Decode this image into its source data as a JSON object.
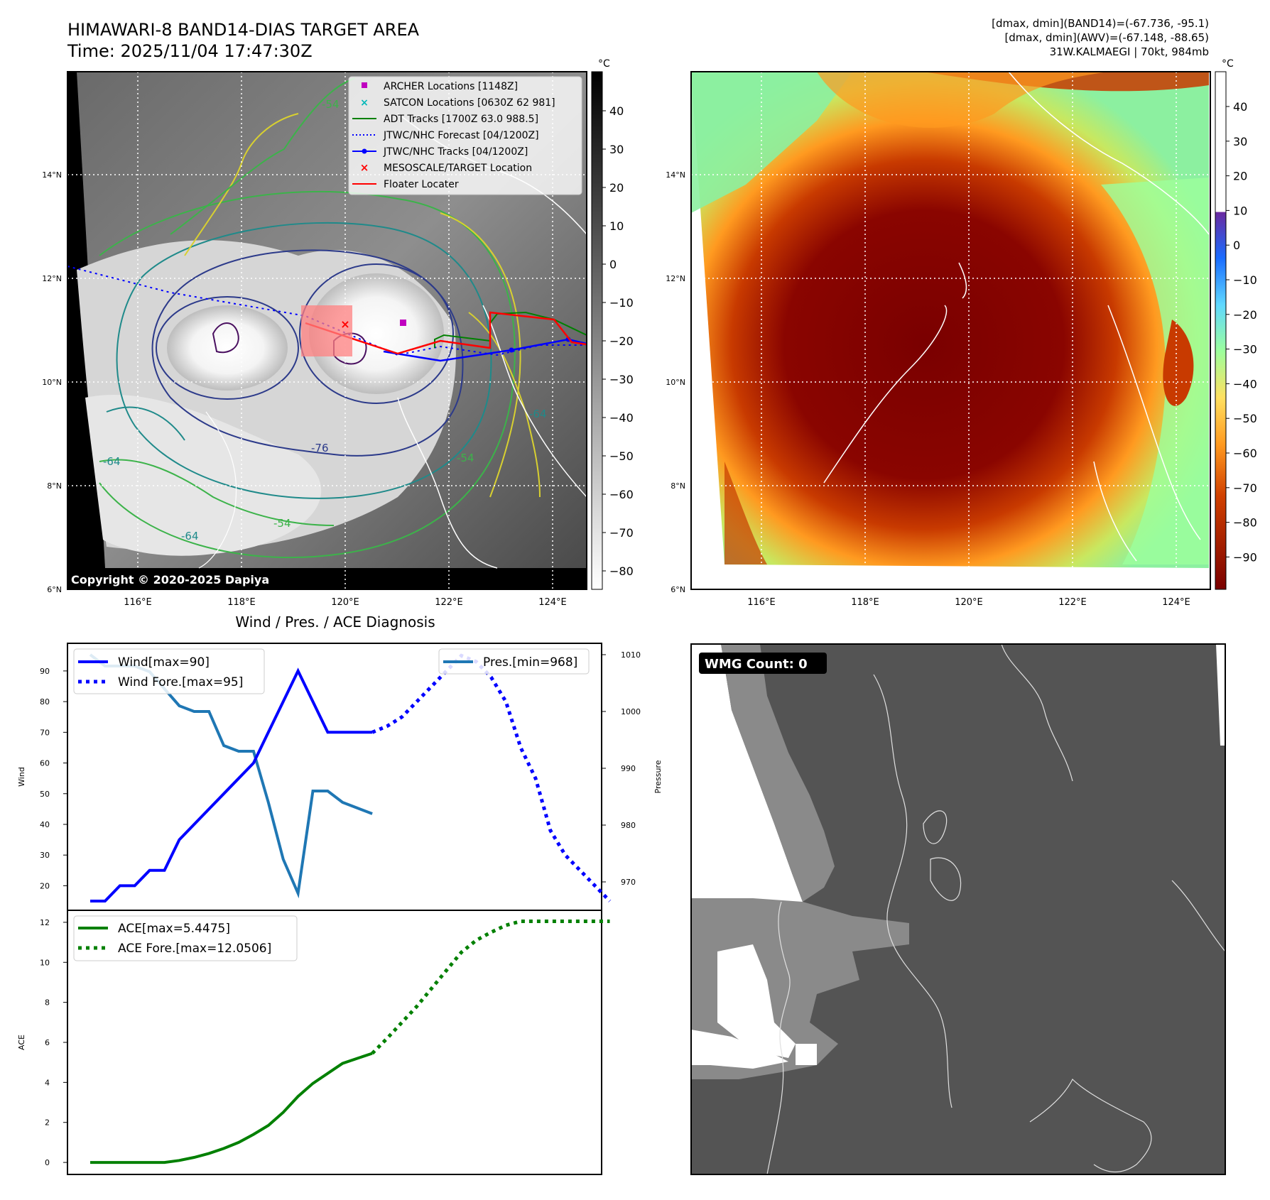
{
  "header": {
    "title_line1": "HIMAWARI-8 BAND14-DIAS TARGET AREA",
    "title_line2": "Time: 2025/11/04 17:47:30Z",
    "stat_line1": "[dmax, dmin](BAND14)=(-67.736, -95.1)",
    "stat_line2": "[dmax, dmin](AWV)=(-67.148, -88.65)",
    "stat_line3": "31W.KALMAEGI | 70kt, 984mb"
  },
  "map_panel_ir": {
    "lat_labels": [
      "14°N",
      "12°N",
      "10°N",
      "8°N",
      "6°N"
    ],
    "lon_labels": [
      "116°E",
      "118°E",
      "120°E",
      "122°E",
      "124°E"
    ],
    "contour_labels": [
      "-54",
      "-64",
      "-76",
      "-64",
      "-54",
      "-64",
      "-54"
    ],
    "legend": [
      {
        "label": "ARCHER Locations [1148Z]",
        "color": "#c000c0",
        "marker": "square"
      },
      {
        "label": "SATCON Locations [0630Z 62 981]",
        "color": "#00b8b8",
        "marker": "x"
      },
      {
        "label": "ADT Tracks [1700Z 63.0 988.5]",
        "color": "#008000",
        "marker": "line"
      },
      {
        "label": "JTWC/NHC Forecast [04/1200Z]",
        "color": "#0000ff",
        "marker": "dotted"
      },
      {
        "label": "JTWC/NHC Tracks [04/1200Z]",
        "color": "#0000ff",
        "marker": "line-dot"
      },
      {
        "label": "MESOSCALE/TARGET Location",
        "color": "#ff0000",
        "marker": "x"
      },
      {
        "label": "Floater Locater",
        "color": "#ff0000",
        "marker": "line"
      }
    ],
    "copyright": "Copyright © 2020-2025 Dapiya",
    "colorbar_unit": "°C",
    "colorbar_ticks": [
      "40",
      "30",
      "20",
      "10",
      "0",
      "−10",
      "−20",
      "−30",
      "−40",
      "−50",
      "−60",
      "−70",
      "−80"
    ]
  },
  "map_panel_awv": {
    "lat_labels": [
      "14°N",
      "12°N",
      "10°N",
      "8°N",
      "6°N"
    ],
    "lon_labels": [
      "116°E",
      "118°E",
      "120°E",
      "122°E",
      "124°E"
    ],
    "colorbar_unit": "°C",
    "colorbar_ticks": [
      "40",
      "30",
      "20",
      "10",
      "0",
      "−10",
      "−20",
      "−30",
      "−40",
      "−50",
      "−60",
      "−70",
      "−80",
      "−90"
    ]
  },
  "wmg_panel": {
    "badge": "WMG Count: 0"
  },
  "chart_data": [
    {
      "type": "line",
      "title": "Wind / Pres. / ACE Diagnosis",
      "ylabel": "Wind",
      "ylim": [
        12,
        99
      ],
      "yticks": [
        20,
        30,
        40,
        50,
        60,
        70,
        80,
        90
      ],
      "series": [
        {
          "name": "Wind[max=90]",
          "color": "#0000ff",
          "style": "solid",
          "x": [
            0,
            1,
            2,
            3,
            4,
            5,
            6,
            7,
            8,
            9,
            10,
            11,
            12,
            13,
            14,
            15,
            16,
            17,
            18,
            19
          ],
          "values": [
            15,
            15,
            20,
            20,
            25,
            25,
            35,
            40,
            45,
            50,
            55,
            60,
            70,
            80,
            90,
            80,
            70,
            70,
            70,
            70
          ]
        },
        {
          "name": "Wind Fore.[max=95]",
          "color": "#0000ff",
          "style": "dotted",
          "x": [
            19,
            20,
            21,
            22,
            23,
            24,
            25,
            26,
            27,
            28,
            29,
            30,
            31,
            32,
            33,
            34,
            35
          ],
          "values": [
            70,
            72,
            75,
            80,
            85,
            90,
            95,
            93,
            88,
            80,
            65,
            55,
            38,
            30,
            25,
            20,
            15
          ]
        }
      ]
    },
    {
      "type": "line",
      "ylabel": "Pressure",
      "ylim": [
        965,
        1012
      ],
      "yticks": [
        970,
        980,
        990,
        1000,
        1010
      ],
      "series": [
        {
          "name": "Pres.[min=968]",
          "color": "#1f77b4",
          "style": "solid",
          "x": [
            0,
            1,
            2,
            3,
            4,
            5,
            6,
            7,
            8,
            9,
            10,
            11,
            12,
            13,
            14,
            15,
            16,
            17,
            18,
            19
          ],
          "values": [
            1010,
            1008,
            1008,
            1008,
            1007,
            1004,
            1001,
            1000,
            1000,
            994,
            993,
            993,
            984,
            974,
            968,
            986,
            986,
            984,
            983,
            982
          ]
        }
      ]
    },
    {
      "type": "line",
      "ylabel": "ACE",
      "ylim": [
        -0.6,
        12.6
      ],
      "yticks": [
        0,
        2,
        4,
        6,
        8,
        10,
        12
      ],
      "series": [
        {
          "name": "ACE[max=5.4475]",
          "color": "#008000",
          "style": "solid",
          "x": [
            0,
            1,
            2,
            3,
            4,
            5,
            6,
            7,
            8,
            9,
            10,
            11,
            12,
            13,
            14,
            15,
            16,
            17,
            18,
            19
          ],
          "values": [
            0,
            0,
            0,
            0,
            0,
            0,
            0.1,
            0.25,
            0.45,
            0.7,
            1.0,
            1.4,
            1.85,
            2.5,
            3.3,
            3.95,
            4.45,
            4.95,
            5.2,
            5.45
          ]
        },
        {
          "name": "ACE Fore.[max=12.0506]",
          "color": "#008000",
          "style": "dotted",
          "x": [
            19,
            20,
            21,
            22,
            23,
            24,
            25,
            26,
            27,
            28,
            29,
            30,
            31,
            32,
            33,
            34,
            35
          ],
          "values": [
            5.45,
            6.2,
            7.0,
            7.8,
            8.7,
            9.6,
            10.5,
            11.1,
            11.5,
            11.85,
            12.05,
            12.05,
            12.05,
            12.05,
            12.05,
            12.05,
            12.05
          ]
        }
      ]
    }
  ]
}
